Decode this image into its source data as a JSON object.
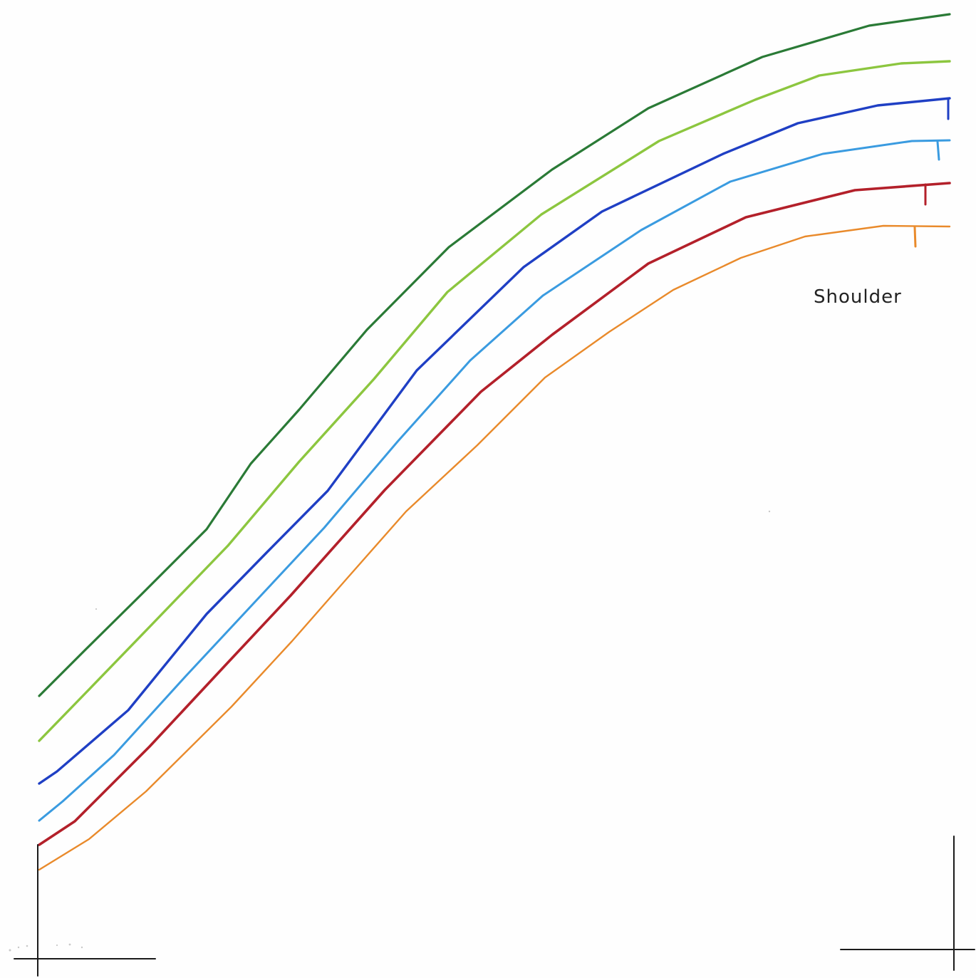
{
  "drawing": {
    "label": "Shoulder",
    "background": "#fefefe",
    "ink": "#1b1b1b"
  },
  "curves": [
    {
      "id": "dark-green",
      "color": "#2a7a36"
    },
    {
      "id": "light-green",
      "color": "#8cc63f"
    },
    {
      "id": "blue",
      "color": "#1f3fc4"
    },
    {
      "id": "light-blue",
      "color": "#3a9be0"
    },
    {
      "id": "red",
      "color": "#b3202a"
    },
    {
      "id": "orange",
      "color": "#e98a2b"
    }
  ]
}
